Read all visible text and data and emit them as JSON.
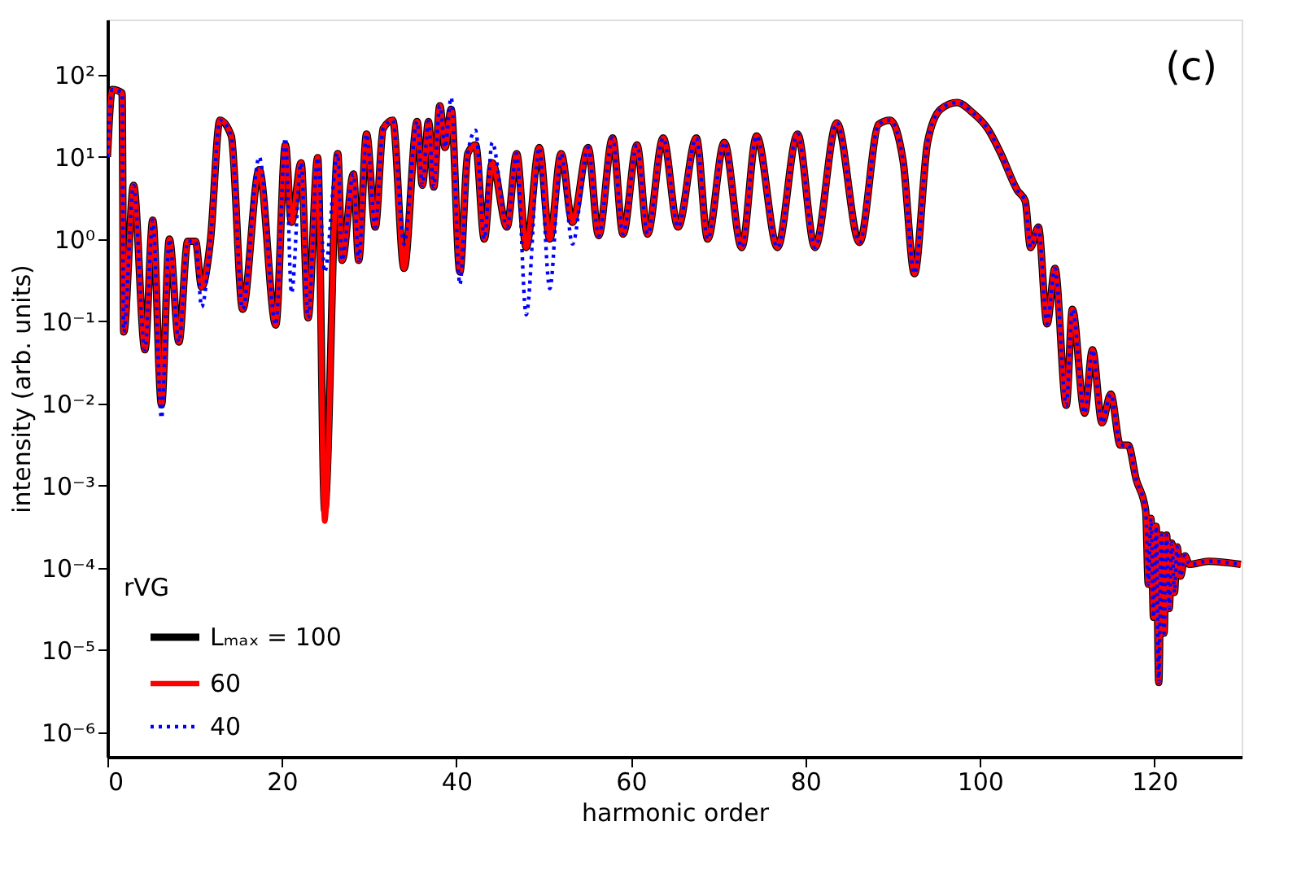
{
  "chart_data": {
    "type": "line",
    "xlabel": "harmonic order",
    "ylabel": "intensity (arb. units)",
    "legend_title": "rVG",
    "legend": "bottom left",
    "log": "y",
    "grid": false,
    "annotations": [
      "(c)"
    ],
    "xlim": [
      0,
      130
    ],
    "xticks": [
      0,
      20,
      40,
      60,
      80,
      100,
      120
    ],
    "ylim": [
      5e-07,
      470
    ],
    "yticks": [
      {
        "value": 1e-06,
        "label": "10⁻⁶"
      },
      {
        "value": 1e-05,
        "label": "10⁻⁵"
      },
      {
        "value": 0.0001,
        "label": "10⁻⁴"
      },
      {
        "value": 0.001,
        "label": "10⁻³"
      },
      {
        "value": 0.01,
        "label": "10⁻²"
      },
      {
        "value": 0.1,
        "label": "10⁻¹"
      },
      {
        "value": 1,
        "label": "10⁰"
      },
      {
        "value": 10,
        "label": "10¹"
      },
      {
        "value": 100,
        "label": "10²"
      }
    ],
    "x": [
      0,
      0.56,
      1.68,
      1.87,
      3.0,
      4.3,
      5.2,
      6.2,
      7.1,
      8.2,
      9.2,
      10.1,
      10.8,
      11.8,
      12.9,
      14.2,
      15.5,
      17.4,
      19.3,
      20.4,
      21.1,
      22.2,
      23.0,
      24.1,
      24.9,
      26.4,
      26.9,
      28.2,
      28.8,
      29.7,
      30.7,
      31.6,
      32.7,
      34.0,
      35.5,
      36.1,
      36.8,
      37.4,
      38.1,
      38.7,
      39.4,
      40.4,
      41.3,
      42.2,
      43.2,
      44.1,
      45.8,
      46.9,
      48.0,
      49.5,
      50.7,
      52.0,
      53.3,
      55.1,
      56.3,
      57.9,
      59.1,
      60.7,
      61.9,
      63.7,
      65.4,
      67.5,
      68.8,
      70.7,
      72.7,
      74.4,
      76.8,
      79.1,
      81.1,
      83.6,
      86.2,
      88.4,
      89.7,
      91.2,
      92.5,
      94.0,
      95.5,
      97.4,
      99.1,
      100.9,
      102.4,
      104.3,
      105.2,
      105.8,
      106.7,
      107.7,
      108.6,
      109.9,
      110.6,
      112.0,
      112.9,
      114.0,
      115.0,
      116.1,
      117.0,
      117.9,
      119.0,
      119.3,
      119.6,
      119.9,
      120.2,
      120.5,
      120.8,
      121.1,
      121.4,
      121.7,
      122.0,
      122.3,
      122.6,
      123.0,
      123.5,
      124.0,
      126.2,
      129.9
    ],
    "series": [
      {
        "name": "Lₘₐₓ = 100",
        "color": "#000000",
        "line_style": "solid",
        "values": [
          10,
          66,
          60,
          0.074,
          4.5,
          0.045,
          1.7,
          0.0096,
          1.0,
          0.056,
          0.94,
          0.94,
          0.26,
          0.94,
          28,
          18,
          0.14,
          7,
          0.09,
          14,
          1.6,
          8.5,
          0.11,
          9.8,
          0.0005,
          11,
          0.55,
          6.2,
          0.55,
          19,
          1.4,
          22,
          28,
          0.44,
          27,
          4.5,
          27,
          4.3,
          42,
          13,
          38,
          0.4,
          11,
          14,
          1.0,
          8.5,
          1.4,
          11,
          0.79,
          13,
          1.0,
          11,
          1.6,
          13,
          1.1,
          17,
          1.15,
          14,
          1.15,
          17,
          1.4,
          17,
          1.0,
          15,
          0.79,
          18,
          0.79,
          19,
          0.79,
          26,
          0.91,
          25,
          28,
          8.9,
          0.38,
          15,
          38,
          46,
          35,
          22,
          11,
          3.9,
          2.9,
          0.79,
          1.4,
          0.093,
          0.44,
          0.0095,
          0.14,
          0.0076,
          0.045,
          0.0058,
          0.013,
          0.0031,
          0.0031,
          0.0012,
          0.0005,
          6.3e-05,
          0.0004,
          2.5e-05,
          0.00032,
          4e-06,
          0.00025,
          1.6e-05,
          0.00025,
          3.2e-05,
          0.0002,
          5e-05,
          0.00018,
          7.9e-05,
          0.00014,
          0.00011,
          0.00012,
          0.00011
        ]
      },
      {
        "name": "60",
        "color": "#ff0000",
        "line_style": "solid",
        "values": [
          10,
          66,
          60,
          0.074,
          4.5,
          0.045,
          1.7,
          0.0096,
          1.0,
          0.056,
          0.94,
          0.94,
          0.26,
          0.94,
          28,
          18,
          0.14,
          7,
          0.09,
          14,
          1.6,
          8.5,
          0.11,
          9.8,
          0.00037,
          11,
          0.55,
          6.2,
          0.55,
          19,
          1.4,
          22,
          28,
          0.44,
          27,
          4.5,
          27,
          4.3,
          42,
          13,
          38,
          0.4,
          11,
          14,
          1.0,
          8.5,
          1.4,
          11,
          0.79,
          13,
          1.0,
          11,
          1.6,
          13,
          1.1,
          17,
          1.15,
          14,
          1.15,
          17,
          1.4,
          17,
          1.0,
          15,
          0.79,
          18,
          0.79,
          19,
          0.79,
          26,
          0.91,
          25,
          28,
          8.9,
          0.38,
          15,
          38,
          46,
          35,
          22,
          11,
          3.9,
          2.9,
          0.79,
          1.4,
          0.093,
          0.44,
          0.0095,
          0.14,
          0.0076,
          0.045,
          0.0058,
          0.013,
          0.0031,
          0.0031,
          0.0012,
          0.0005,
          6.3e-05,
          0.0004,
          2.5e-05,
          0.00032,
          4e-06,
          0.00025,
          1.6e-05,
          0.00025,
          3.2e-05,
          0.0002,
          5e-05,
          0.00018,
          7.9e-05,
          0.00014,
          0.00011,
          0.00012,
          0.00011
        ]
      },
      {
        "name": "40",
        "color": "#0000ff",
        "line_style": "dotted",
        "values": [
          10,
          66,
          60,
          0.074,
          4.5,
          0.045,
          1.7,
          0.0066,
          1.0,
          0.056,
          0.94,
          0.94,
          0.15,
          0.94,
          28,
          18,
          0.14,
          10,
          0.09,
          17,
          0.22,
          8.5,
          0.11,
          9.8,
          0.4,
          11,
          0.55,
          6.2,
          0.55,
          19,
          1.4,
          22,
          28,
          0.87,
          27,
          4.5,
          27,
          4.3,
          42,
          13,
          53,
          0.28,
          11,
          21,
          1.0,
          15,
          1.4,
          11,
          0.12,
          13,
          0.25,
          11,
          0.87,
          13,
          1.1,
          17,
          1.15,
          14,
          1.15,
          17,
          1.4,
          17,
          1.0,
          15,
          0.79,
          18,
          0.79,
          19,
          0.79,
          26,
          0.91,
          25,
          28,
          8.9,
          0.38,
          15,
          38,
          46,
          35,
          22,
          11,
          3.9,
          2.9,
          0.79,
          1.4,
          0.093,
          0.44,
          0.0095,
          0.14,
          0.0076,
          0.045,
          0.0058,
          0.013,
          0.0031,
          0.0031,
          0.0012,
          0.0005,
          6.3e-05,
          0.0004,
          2.5e-05,
          0.00032,
          4e-06,
          0.00025,
          1.6e-05,
          0.00025,
          3.2e-05,
          0.0002,
          5e-05,
          0.00018,
          7.9e-05,
          0.00014,
          0.00011,
          0.00012,
          0.00011
        ]
      }
    ]
  }
}
